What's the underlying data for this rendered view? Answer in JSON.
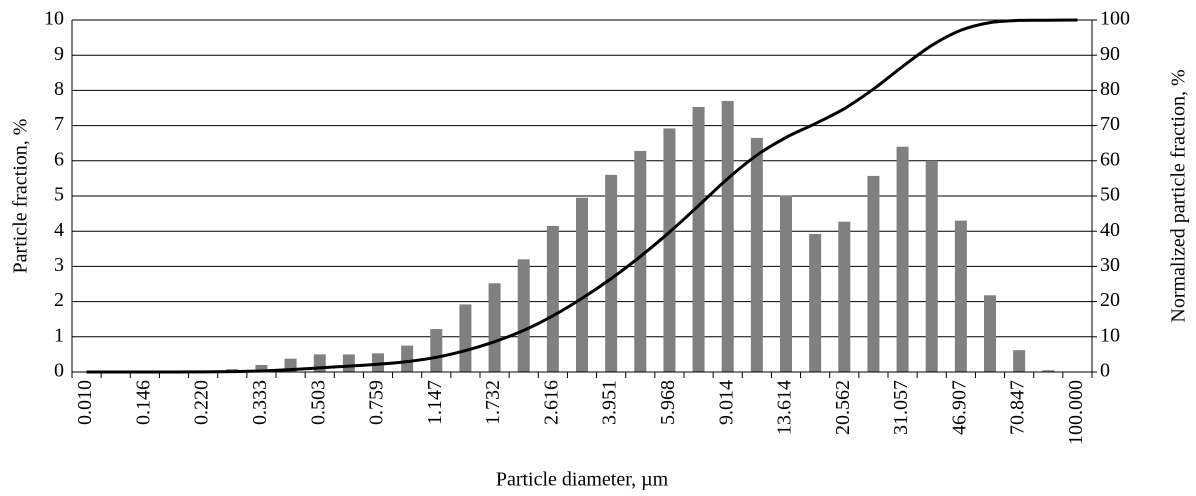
{
  "chart_data": {
    "type": "bar",
    "x_label": "Particle diameter, µm",
    "y_label": "Particle fraction, %",
    "y2_label": "Normalized particle fraction, %",
    "categories": [
      "0.010",
      null,
      "0.146",
      null,
      "0.220",
      null,
      "0.333",
      null,
      "0.503",
      null,
      "0.759",
      null,
      "1.147",
      null,
      "1.732",
      null,
      "2.616",
      null,
      "3.951",
      null,
      "5.968",
      null,
      "9.014",
      null,
      "13.614",
      null,
      "20.562",
      null,
      "31.057",
      null,
      "46.907",
      null,
      "70.847",
      null,
      "100.000"
    ],
    "series": [
      {
        "name": "Particle fraction",
        "type": "bar",
        "color": "#808080",
        "values": [
          0,
          0,
          0,
          0,
          0.02,
          0.08,
          0.2,
          0.38,
          0.5,
          0.5,
          0.53,
          0.75,
          1.22,
          1.92,
          2.52,
          3.2,
          4.15,
          4.95,
          5.6,
          6.28,
          6.92,
          7.53,
          7.7,
          6.65,
          5.02,
          3.92,
          4.27,
          5.57,
          6.4,
          6.0,
          4.3,
          2.18,
          0.62,
          0.05,
          0
        ]
      },
      {
        "name": "Normalized particle fraction",
        "type": "line",
        "axis": "y2",
        "color": "#000000",
        "values": [
          0,
          0,
          0,
          0,
          0.02,
          0.1,
          0.3,
          0.68,
          1.18,
          1.68,
          2.21,
          2.96,
          4.18,
          6.1,
          8.62,
          11.82,
          15.97,
          20.92,
          26.52,
          32.8,
          39.72,
          47.25,
          54.95,
          61.6,
          66.62,
          70.54,
          74.81,
          80.38,
          86.78,
          92.78,
          97.08,
          99.26,
          99.88,
          99.93,
          100
        ]
      }
    ],
    "ylim": [
      0,
      10
    ],
    "yticks": [
      0,
      1,
      2,
      3,
      4,
      5,
      6,
      7,
      8,
      9,
      10
    ],
    "y2lim": [
      0,
      100
    ],
    "y2ticks": [
      0,
      10,
      20,
      30,
      40,
      50,
      60,
      70,
      80,
      90,
      100
    ],
    "grid": true
  }
}
